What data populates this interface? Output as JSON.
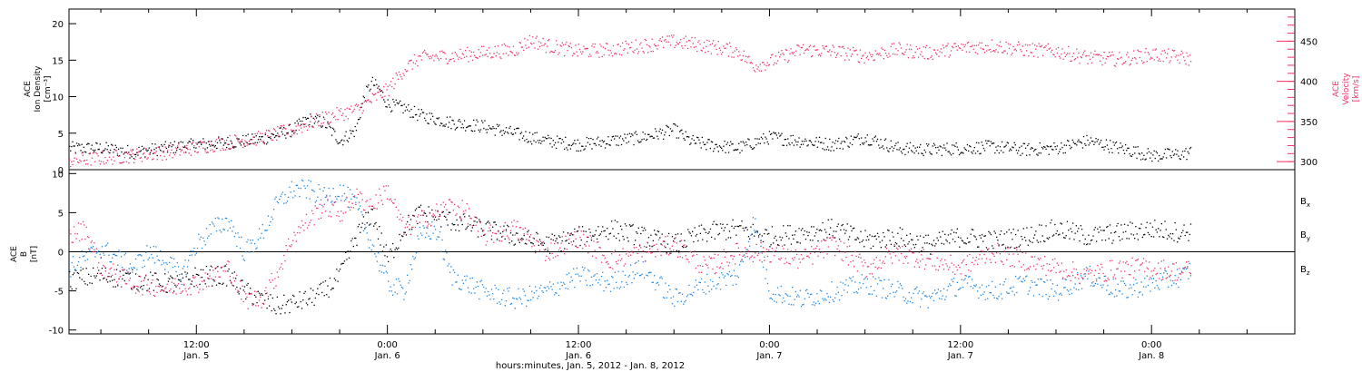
{
  "colors": {
    "black": "#000000",
    "pink": "#ee3366",
    "blue": "#1c86e0"
  },
  "chart_data": [
    {
      "type": "scatter",
      "panel": "top",
      "left_axis_title": [
        "ACE",
        "Ion Density",
        "[cm⁻³]"
      ],
      "right_axis_title": [
        "ACE",
        "Velocity",
        "[km/s]"
      ],
      "y_ticks_left": [
        "0",
        "5",
        "10",
        "15",
        "20"
      ],
      "ylim_left": [
        0,
        22
      ],
      "y_ticks_right": [
        "300",
        "350",
        "400",
        "450"
      ],
      "ylim_right": [
        290,
        490
      ],
      "series": [
        {
          "role": "density",
          "axis": "left",
          "color": "#000000",
          "points": [
            [
              4.0,
              3
            ],
            [
              6,
              3
            ],
            [
              8,
              2.5
            ],
            [
              10,
              3
            ],
            [
              12,
              3.5
            ],
            [
              14,
              3.8
            ],
            [
              16,
              4.2
            ],
            [
              18,
              5.5
            ],
            [
              19,
              7
            ],
            [
              20,
              6.5
            ],
            [
              21,
              4
            ],
            [
              22,
              5.5
            ],
            [
              22.5,
              10
            ],
            [
              23,
              12
            ],
            [
              23.5,
              11
            ],
            [
              24,
              9
            ],
            [
              25,
              8.5
            ],
            [
              26,
              7.5
            ],
            [
              27,
              7
            ],
            [
              28,
              6.5
            ],
            [
              30,
              6
            ],
            [
              32,
              5
            ],
            [
              34,
              4
            ],
            [
              36,
              3.5
            ],
            [
              38,
              4
            ],
            [
              40,
              4.5
            ],
            [
              42,
              5.5
            ],
            [
              43,
              4
            ],
            [
              44,
              3.5
            ],
            [
              46,
              3
            ],
            [
              48,
              4.5
            ],
            [
              50,
              4
            ],
            [
              52,
              3.5
            ],
            [
              54,
              4.5
            ],
            [
              56,
              3
            ],
            [
              58,
              2.8
            ],
            [
              60,
              3
            ],
            [
              62,
              3.2
            ],
            [
              64,
              2.8
            ],
            [
              66,
              3
            ],
            [
              68,
              4
            ],
            [
              70,
              3
            ],
            [
              72,
              2
            ],
            [
              74,
              2.2
            ],
            [
              74.5,
              2.5
            ]
          ]
        },
        {
          "role": "velocity",
          "axis": "right",
          "color": "#ee3366",
          "points": [
            [
              4.0,
              302
            ],
            [
              6,
              305
            ],
            [
              8,
              308
            ],
            [
              10,
              312
            ],
            [
              12,
              318
            ],
            [
              14,
              325
            ],
            [
              16,
              330
            ],
            [
              18,
              340
            ],
            [
              20,
              355
            ],
            [
              22,
              365
            ],
            [
              24,
              390
            ],
            [
              25,
              415
            ],
            [
              26,
              430
            ],
            [
              28,
              432
            ],
            [
              30,
              436
            ],
            [
              32,
              440
            ],
            [
              33,
              452
            ],
            [
              34,
              445
            ],
            [
              36,
              438
            ],
            [
              38,
              440
            ],
            [
              40,
              445
            ],
            [
              42,
              450
            ],
            [
              44,
              445
            ],
            [
              46,
              438
            ],
            [
              47,
              420
            ],
            [
              48,
              425
            ],
            [
              50,
              440
            ],
            [
              52,
              438
            ],
            [
              54,
              432
            ],
            [
              56,
              440
            ],
            [
              58,
              436
            ],
            [
              60,
              442
            ],
            [
              62,
              445
            ],
            [
              64,
              440
            ],
            [
              66,
              438
            ],
            [
              68,
              430
            ],
            [
              70,
              428
            ],
            [
              72,
              434
            ],
            [
              74,
              430
            ],
            [
              74.5,
              428
            ]
          ]
        }
      ]
    },
    {
      "type": "scatter",
      "panel": "bottom",
      "left_axis_title": [
        "ACE",
        "B",
        "[nT]"
      ],
      "y_ticks": [
        "-10",
        "-5",
        "0",
        "5",
        "10"
      ],
      "ylim": [
        -10.5,
        10.5
      ],
      "x_tick_times": [
        "12:00",
        "0:00",
        "12:00",
        "0:00",
        "12:00",
        "0:00"
      ],
      "x_tick_dates": [
        "Jan. 5",
        "Jan. 6",
        "Jan. 6",
        "Jan. 7",
        "Jan. 7",
        "Jan. 8"
      ],
      "x_ticks_hours": [
        12,
        24,
        36,
        48,
        60,
        72
      ],
      "xlim_hours": [
        4,
        81
      ],
      "xlabel": "hours:minutes, Jan.  5, 2012 - Jan.  8, 2012",
      "legend": [
        "B",
        "B",
        "B"
      ],
      "legend_subscripts": [
        "x",
        "y",
        "z"
      ],
      "legend_placement": "right",
      "series": [
        {
          "role": "Bx",
          "color": "#000000",
          "points": [
            [
              4.0,
              -3.5
            ],
            [
              6,
              -3
            ],
            [
              8,
              -3.5
            ],
            [
              10,
              -4
            ],
            [
              11,
              -4
            ],
            [
              12,
              -3
            ],
            [
              14,
              -3
            ],
            [
              15,
              -5
            ],
            [
              16,
              -6
            ],
            [
              17,
              -7
            ],
            [
              18,
              -6.5
            ],
            [
              19,
              -6
            ],
            [
              20,
              -5
            ],
            [
              21,
              -3
            ],
            [
              22,
              2
            ],
            [
              23,
              5
            ],
            [
              24,
              -1
            ],
            [
              25,
              3
            ],
            [
              26,
              5
            ],
            [
              28,
              4
            ],
            [
              30,
              3
            ],
            [
              32,
              2
            ],
            [
              34,
              1
            ],
            [
              36,
              2
            ],
            [
              38,
              3
            ],
            [
              40,
              2
            ],
            [
              42,
              1
            ],
            [
              44,
              2.5
            ],
            [
              46,
              3
            ],
            [
              48,
              2
            ],
            [
              50,
              2.5
            ],
            [
              52,
              3
            ],
            [
              54,
              1.5
            ],
            [
              56,
              2
            ],
            [
              58,
              1
            ],
            [
              60,
              2
            ],
            [
              62,
              1.5
            ],
            [
              64,
              2
            ],
            [
              66,
              3
            ],
            [
              68,
              2
            ],
            [
              70,
              2.5
            ],
            [
              72,
              3
            ],
            [
              74,
              2.5
            ],
            [
              74.5,
              2.8
            ]
          ]
        },
        {
          "role": "By",
          "color": "#1c86e0",
          "points": [
            [
              4.0,
              -2
            ],
            [
              6,
              0.5
            ],
            [
              8,
              -2
            ],
            [
              9,
              0
            ],
            [
              10,
              -1
            ],
            [
              11,
              -3
            ],
            [
              12,
              1
            ],
            [
              13,
              3
            ],
            [
              14,
              4
            ],
            [
              15,
              0
            ],
            [
              16,
              2
            ],
            [
              17,
              6
            ],
            [
              18,
              8
            ],
            [
              19,
              8
            ],
            [
              20,
              7
            ],
            [
              21,
              8
            ],
            [
              22,
              6
            ],
            [
              23,
              1
            ],
            [
              24,
              -4
            ],
            [
              25,
              -5
            ],
            [
              26,
              2
            ],
            [
              27,
              3
            ],
            [
              28,
              -3
            ],
            [
              30,
              -5
            ],
            [
              32,
              -6
            ],
            [
              34,
              -5
            ],
            [
              36,
              -3
            ],
            [
              38,
              -4
            ],
            [
              40,
              -2
            ],
            [
              42,
              -6
            ],
            [
              44,
              -4
            ],
            [
              46,
              -3
            ],
            [
              47,
              4
            ],
            [
              48,
              -5
            ],
            [
              50,
              -6
            ],
            [
              52,
              -5
            ],
            [
              54,
              -4
            ],
            [
              56,
              -5
            ],
            [
              58,
              -6
            ],
            [
              60,
              -4
            ],
            [
              62,
              -5
            ],
            [
              64,
              -4
            ],
            [
              66,
              -5
            ],
            [
              68,
              -3
            ],
            [
              70,
              -5
            ],
            [
              72,
              -4
            ],
            [
              74,
              -3
            ],
            [
              74.5,
              -2
            ]
          ]
        },
        {
          "role": "Bz",
          "color": "#ee3366",
          "points": [
            [
              4.0,
              2
            ],
            [
              5,
              3
            ],
            [
              6,
              -2
            ],
            [
              8,
              -4
            ],
            [
              10,
              -4.5
            ],
            [
              12,
              -4
            ],
            [
              13,
              -3
            ],
            [
              14,
              -2
            ],
            [
              15,
              -6
            ],
            [
              16,
              -6
            ],
            [
              17,
              -3
            ],
            [
              18,
              2
            ],
            [
              19,
              4
            ],
            [
              20,
              6
            ],
            [
              21,
              5
            ],
            [
              22,
              7
            ],
            [
              23,
              6
            ],
            [
              24,
              8
            ],
            [
              25,
              3
            ],
            [
              26,
              4
            ],
            [
              28,
              6
            ],
            [
              29,
              5
            ],
            [
              30,
              2
            ],
            [
              32,
              3
            ],
            [
              34,
              0
            ],
            [
              36,
              2
            ],
            [
              38,
              -1
            ],
            [
              40,
              0
            ],
            [
              42,
              1
            ],
            [
              44,
              -2
            ],
            [
              46,
              0
            ],
            [
              48,
              0
            ],
            [
              50,
              -1
            ],
            [
              52,
              1
            ],
            [
              54,
              -2
            ],
            [
              56,
              0
            ],
            [
              58,
              -1
            ],
            [
              60,
              -2
            ],
            [
              62,
              0
            ],
            [
              64,
              -1
            ],
            [
              66,
              -2
            ],
            [
              68,
              -3
            ],
            [
              70,
              -2
            ],
            [
              72,
              -2
            ],
            [
              74,
              -2.5
            ],
            [
              74.5,
              -2
            ]
          ]
        }
      ]
    }
  ]
}
